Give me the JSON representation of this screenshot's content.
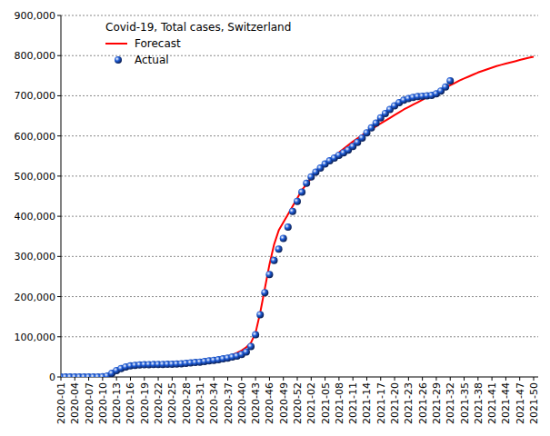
{
  "chart_data": {
    "type": "line",
    "title": "Covid-19, Total cases, Switzerland",
    "categories": [
      "2020-01",
      null,
      null,
      "2020-04",
      null,
      null,
      "2020-07",
      null,
      null,
      "2020-10",
      null,
      null,
      "2020-13",
      null,
      null,
      "2020-16",
      null,
      null,
      "2020-19",
      null,
      null,
      "2020-22",
      null,
      null,
      "2020-25",
      null,
      null,
      "2020-28",
      null,
      null,
      "2020-31",
      null,
      null,
      "2020-34",
      null,
      null,
      "2020-37",
      null,
      null,
      "2020-40",
      null,
      null,
      "2020-43",
      null,
      null,
      "2020-46",
      null,
      null,
      "2020-49",
      null,
      null,
      "2020-52",
      null,
      null,
      "2021-02",
      null,
      null,
      "2021-05",
      null,
      null,
      "2021-08",
      null,
      null,
      "2021-11",
      null,
      null,
      "2021-14",
      null,
      null,
      "2021-17",
      null,
      null,
      "2021-20",
      null,
      null,
      "2021-23",
      null,
      null,
      "2021-26",
      null,
      null,
      "2021-29",
      null,
      null,
      "2021-32",
      null,
      null,
      "2021-35",
      null,
      null,
      "2021-38",
      null,
      null,
      "2021-41",
      null,
      null,
      "2021-44",
      null,
      null,
      "2021-47",
      null,
      null,
      "2021-50"
    ],
    "series": [
      {
        "name": "Forecast",
        "color": "#ff0000",
        "type": "line",
        "line_style": "solid",
        "values": [
          0,
          0,
          0,
          0,
          0,
          0,
          0,
          0,
          0,
          0,
          2000,
          10000,
          18000,
          22000,
          24000,
          25500,
          26500,
          27000,
          27500,
          28000,
          28500,
          29000,
          29500,
          30000,
          30500,
          31000,
          31500,
          32500,
          33500,
          35000,
          36500,
          38000,
          40000,
          42000,
          44500,
          47500,
          51000,
          55000,
          60000,
          66000,
          74000,
          85000,
          110000,
          160000,
          220000,
          280000,
          330000,
          365000,
          385000,
          405000,
          425000,
          445000,
          465000,
          480000,
          495000,
          508000,
          520000,
          530000,
          540000,
          550000,
          559000,
          568000,
          577000,
          586000,
          594000,
          602000,
          610000,
          617000,
          624000,
          631000,
          638000,
          645000,
          652000,
          659000,
          666000,
          672000,
          678000,
          684000,
          690000,
          696000,
          702000,
          708000,
          714000,
          720000,
          726000,
          732000,
          738000,
          743000,
          748000,
          753000,
          758000,
          762000,
          766000,
          770000,
          774000,
          777000,
          780000,
          783000,
          786000,
          789000,
          792000,
          795000,
          797000
        ]
      },
      {
        "name": "Actual",
        "color": "#1e5bd6",
        "type": "scatter",
        "marker": "circle",
        "values": [
          0,
          0,
          0,
          0,
          0,
          0,
          0,
          0,
          30,
          500,
          2500,
          9000,
          16000,
          21000,
          25000,
          27500,
          29000,
          30000,
          30500,
          30800,
          31000,
          31200,
          31300,
          31500,
          31800,
          32300,
          33000,
          34000,
          35000,
          36000,
          37000,
          38500,
          40000,
          41500,
          43000,
          45000,
          47000,
          49500,
          52000,
          56000,
          62000,
          76000,
          105000,
          155000,
          210000,
          255000,
          290000,
          318000,
          345000,
          373000,
          412000,
          437000,
          460000,
          482000,
          498000,
          510000,
          520000,
          530000,
          538000,
          545000,
          552000,
          558000,
          565000,
          574000,
          584000,
          595000,
          608000,
          620000,
          632000,
          645000,
          656000,
          666000,
          675000,
          683000,
          689000,
          693000,
          696000,
          698000,
          699000,
          700000,
          701000,
          705000,
          712000,
          722000,
          737000,
          null,
          null,
          null,
          null,
          null,
          null,
          null,
          null,
          null,
          null,
          null,
          null,
          null,
          null,
          null,
          null,
          null,
          null
        ]
      }
    ],
    "ylim": [
      0,
      900000
    ],
    "yticks": [
      0,
      {
        "value": 100000,
        "label": "100,000"
      },
      {
        "value": 200000,
        "label": "200,000"
      },
      {
        "value": 300000,
        "label": "300,000"
      },
      {
        "value": 400000,
        "label": "400,000"
      },
      {
        "value": 500000,
        "label": "500,000"
      },
      {
        "value": 600000,
        "label": "600,000"
      },
      {
        "value": 700000,
        "label": "700,000"
      },
      {
        "value": 800000,
        "label": "800,000"
      },
      {
        "value": 900000,
        "label": "900,000"
      }
    ],
    "grid": true,
    "legend": "upper left"
  }
}
